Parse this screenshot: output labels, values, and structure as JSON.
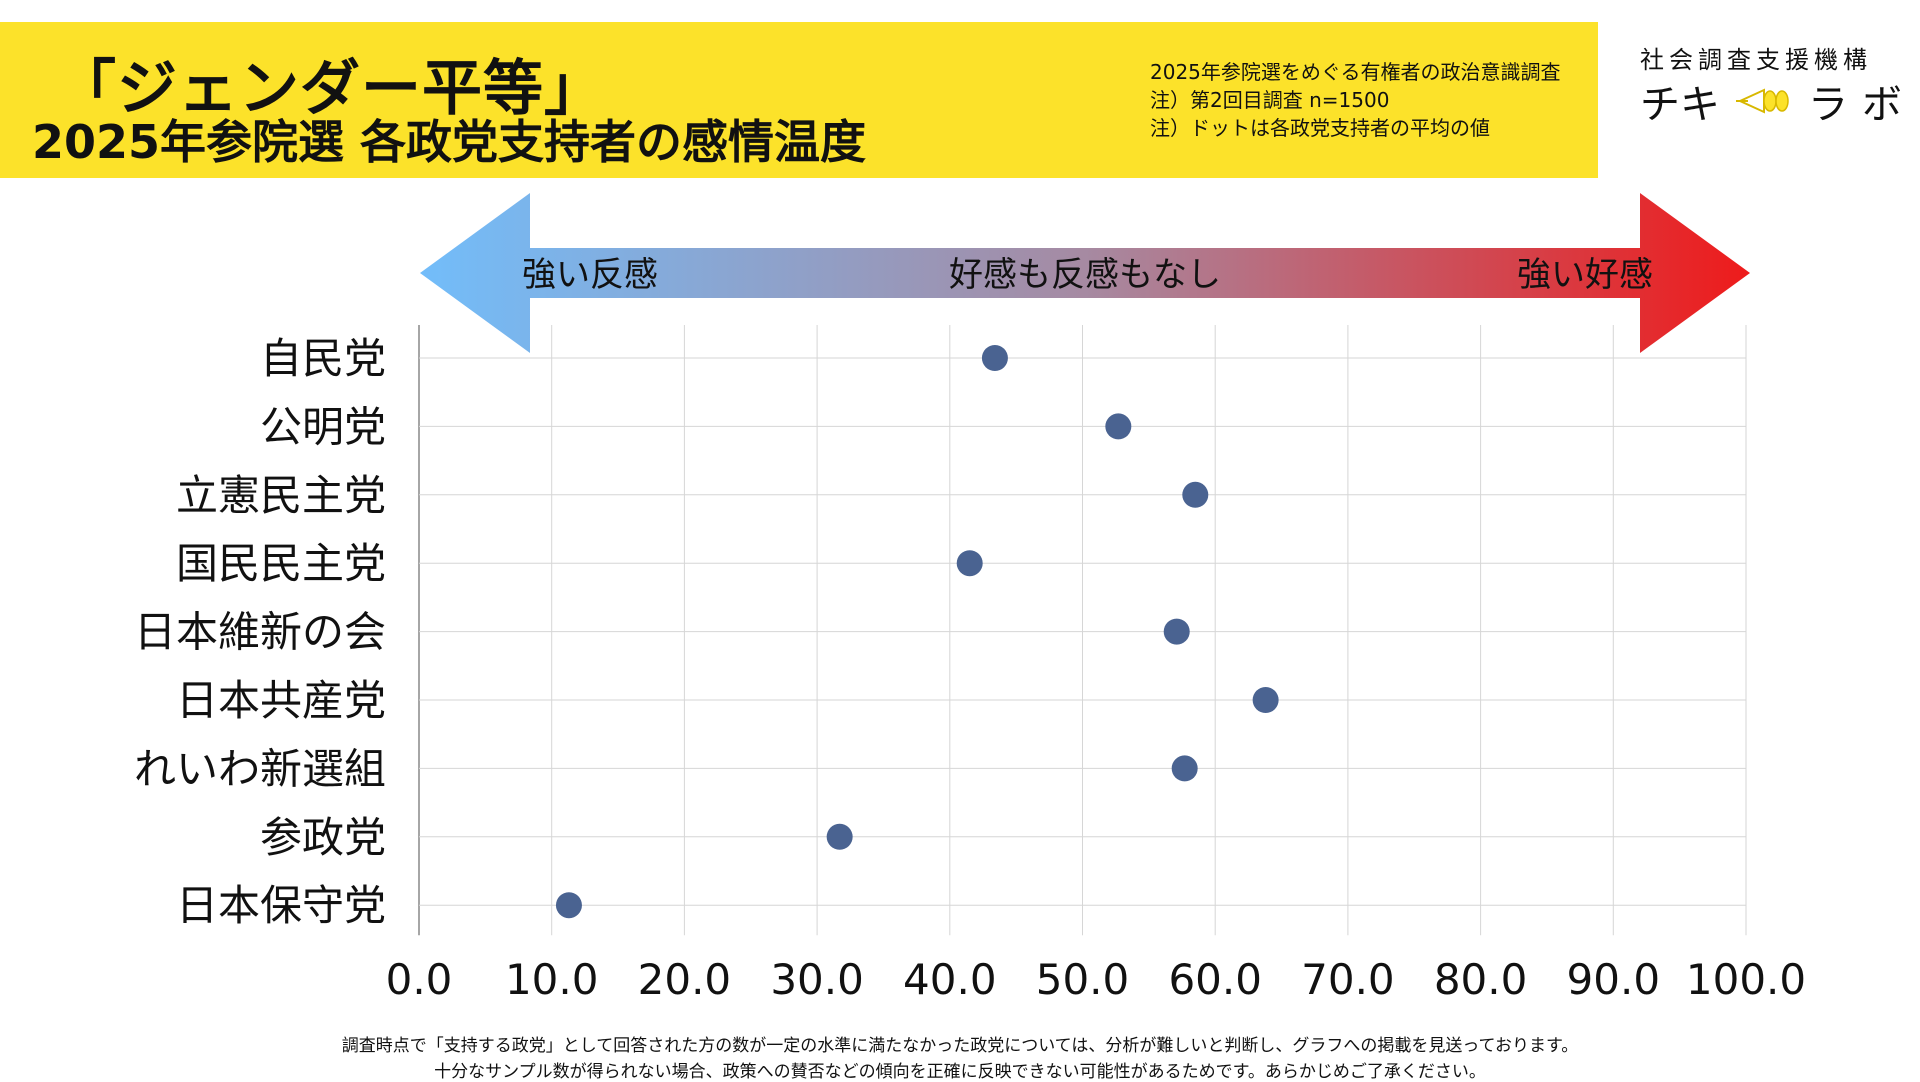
{
  "header": {
    "title_main": "「ジェンダー平等」",
    "title_sub": "2025年参院選 各政党支持者の感情温度",
    "notes": [
      "2025年参院選をめぐる有権者の政治意識調査",
      "注）第2回目調査 n=1500",
      "注）ドットは各政党支持者の平均の値"
    ],
    "org_name": "社会調査支援機構",
    "brand_left": "チキ",
    "brand_right": "ラボ",
    "band_color": "#fce22a"
  },
  "scale": {
    "left_label": "強い反感",
    "center_label": "好感も反感もなし",
    "right_label": "強い好感",
    "left_color": "#72bdfa",
    "right_color": "#ee1b1b"
  },
  "chart_data": {
    "type": "scatter",
    "categories": [
      "自民党",
      "公明党",
      "立憲民主党",
      "国民民主党",
      "日本維新の会",
      "日本共産党",
      "れいわ新選組",
      "参政党",
      "日本保守党"
    ],
    "values": [
      43.4,
      52.7,
      58.5,
      41.5,
      57.1,
      63.8,
      57.7,
      31.7,
      11.3
    ],
    "xlim": [
      0,
      100
    ],
    "ticks": [
      "0.0",
      "10.0",
      "20.0",
      "30.0",
      "40.0",
      "50.0",
      "60.0",
      "70.0",
      "80.0",
      "90.0",
      "100.0"
    ],
    "grid": true,
    "point_color": "#4a6391"
  },
  "footer": {
    "line1": "調査時点で「支持する政党」として回答された方の数が一定の水準に満たなかった政党については、分析が難しいと判断し、グラフへの掲載を見送っております。",
    "line2": "十分なサンプル数が得られない場合、政策への賛否などの傾向を正確に反映できない可能性があるためです。あらかじめご了承ください。"
  }
}
